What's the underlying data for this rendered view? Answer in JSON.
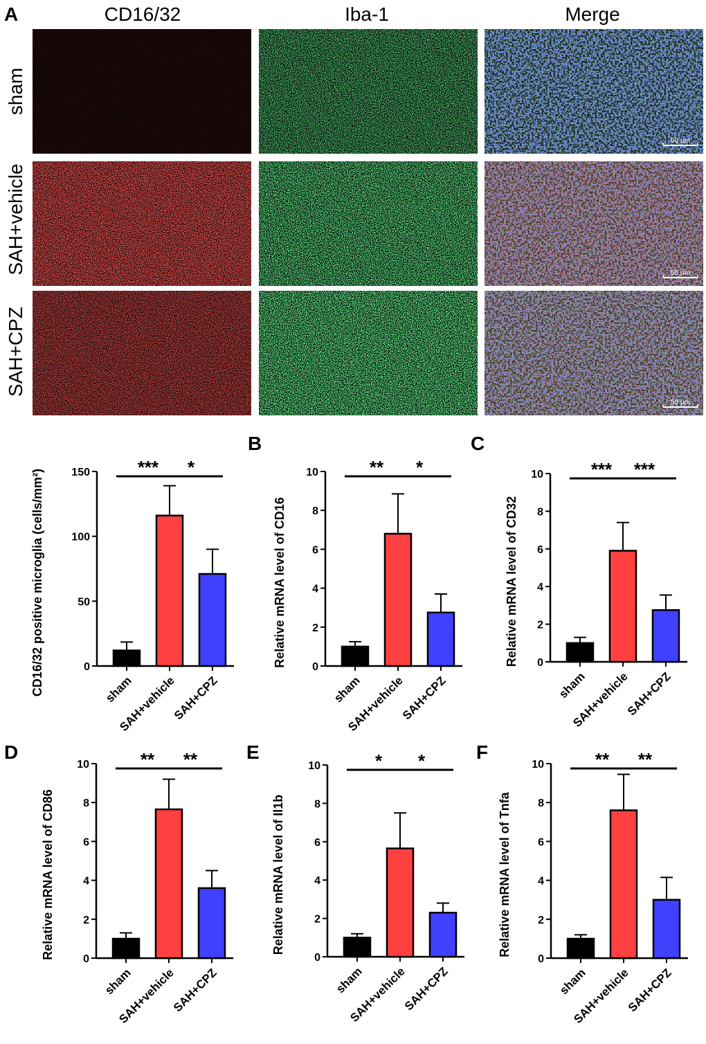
{
  "panel_a": {
    "letter": "A",
    "columns": [
      "CD16/32",
      "Iba-1",
      "Merge"
    ],
    "rows": [
      "sham",
      "SAH+vehicle",
      "SAH+CPZ"
    ],
    "scale_bar_label": "50 μm",
    "channel_colors": {
      "CD16/32": "#ff2a2a",
      "Iba-1": "#2aff4a",
      "Merge": "#3344ff"
    }
  },
  "colors": {
    "sham": "#000000",
    "SAH+vehicle": "#ff4040",
    "SAH+CPZ": "#4040ff"
  },
  "chart_data": [
    {
      "type": "bar",
      "id": "microglia",
      "letter": "",
      "categories": [
        "sham",
        "SAH+vehicle",
        "SAH+CPZ"
      ],
      "values": [
        12,
        116,
        71
      ],
      "errors": [
        6.5,
        23,
        19
      ],
      "ylabel": "CD16/32 positive microglia (cells/mm²)",
      "ylim": [
        0,
        150
      ],
      "yticks": [
        0,
        50,
        100,
        150
      ],
      "significance": [
        {
          "from": 0,
          "to": 1,
          "label": "***"
        },
        {
          "from": 1,
          "to": 2,
          "label": "*"
        }
      ]
    },
    {
      "type": "bar",
      "id": "cd16",
      "letter": "B",
      "categories": [
        "sham",
        "SAH+vehicle",
        "SAH+CPZ"
      ],
      "values": [
        1.0,
        6.8,
        2.75
      ],
      "errors": [
        0.25,
        2.05,
        0.95
      ],
      "ylabel": "Relative mRNA level of CD16",
      "ylim": [
        0,
        10
      ],
      "yticks": [
        0,
        2,
        4,
        6,
        8,
        10
      ],
      "significance": [
        {
          "from": 0,
          "to": 1,
          "label": "**"
        },
        {
          "from": 1,
          "to": 2,
          "label": "*"
        }
      ]
    },
    {
      "type": "bar",
      "id": "cd32",
      "letter": "C",
      "categories": [
        "sham",
        "SAH+vehicle",
        "SAH+CPZ"
      ],
      "values": [
        1.0,
        5.9,
        2.75
      ],
      "errors": [
        0.3,
        1.5,
        0.8
      ],
      "ylabel": "Relative mRNA level of CD32",
      "ylim": [
        0,
        10
      ],
      "yticks": [
        0,
        2,
        4,
        6,
        8,
        10
      ],
      "significance": [
        {
          "from": 0,
          "to": 1,
          "label": "***"
        },
        {
          "from": 1,
          "to": 2,
          "label": "***"
        }
      ]
    },
    {
      "type": "bar",
      "id": "cd86",
      "letter": "D",
      "categories": [
        "sham",
        "SAH+vehicle",
        "SAH+CPZ"
      ],
      "values": [
        1.0,
        7.65,
        3.6
      ],
      "errors": [
        0.3,
        1.55,
        0.9
      ],
      "ylabel": "Relative mRNA level of CD86",
      "ylim": [
        0,
        10
      ],
      "yticks": [
        0,
        2,
        4,
        6,
        8,
        10
      ],
      "significance": [
        {
          "from": 0,
          "to": 1,
          "label": "**"
        },
        {
          "from": 1,
          "to": 2,
          "label": "**"
        }
      ]
    },
    {
      "type": "bar",
      "id": "il1b",
      "letter": "E",
      "categories": [
        "sham",
        "SAH+vehicle",
        "SAH+CPZ"
      ],
      "values": [
        1.0,
        5.65,
        2.3
      ],
      "errors": [
        0.2,
        1.85,
        0.5
      ],
      "ylabel": "Relative mRNA level of Il1b",
      "ylim": [
        0,
        10
      ],
      "yticks": [
        0,
        2,
        4,
        6,
        8,
        10
      ],
      "significance": [
        {
          "from": 0,
          "to": 1,
          "label": "*"
        },
        {
          "from": 1,
          "to": 2,
          "label": "*"
        }
      ]
    },
    {
      "type": "bar",
      "id": "tnfa",
      "letter": "F",
      "categories": [
        "sham",
        "SAH+vehicle",
        "SAH+CPZ"
      ],
      "values": [
        1.0,
        7.6,
        3.0
      ],
      "errors": [
        0.2,
        1.85,
        1.15
      ],
      "ylabel": "Relative mRNA level of Tnfa",
      "ylim": [
        0,
        10
      ],
      "yticks": [
        0,
        2,
        4,
        6,
        8,
        10
      ],
      "significance": [
        {
          "from": 0,
          "to": 1,
          "label": "**"
        },
        {
          "from": 1,
          "to": 2,
          "label": "**"
        }
      ]
    }
  ]
}
